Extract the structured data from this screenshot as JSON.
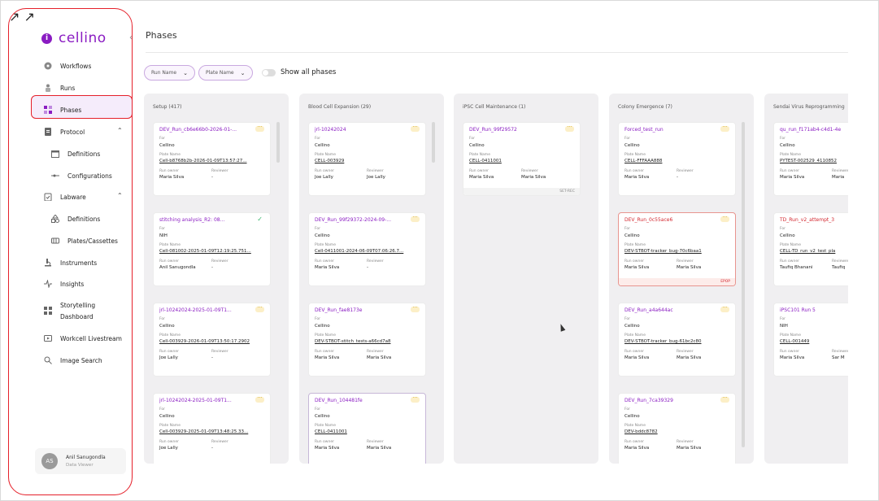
{
  "brand": {
    "name": "cellino",
    "accent": "#8a1cc2",
    "highlight": "#e5202a"
  },
  "nav": {
    "workflows": "Workflows",
    "runs": "Runs",
    "phases": "Phases",
    "protocol": "Protocol",
    "protocol_definitions": "Definitions",
    "protocol_configurations": "Configurations",
    "labware": "Labware",
    "labware_definitions": "Definitions",
    "labware_plates": "Plates/Cassettes",
    "instruments": "Instruments",
    "insights": "Insights",
    "storytelling_1": "Storytelling",
    "storytelling_2": "Dashboard",
    "workcell": "Workcell Livestream",
    "image_search": "Image Search"
  },
  "user": {
    "initials": "AS",
    "name": "Anil Sanugondla",
    "role": "Data Viewer"
  },
  "page": {
    "title": "Phases"
  },
  "filters": {
    "run_name": "Run Name",
    "plate_name": "Plate Name",
    "show_all": "Show all phases"
  },
  "labels": {
    "for": "For",
    "plate_name": "Plate Name",
    "run_owner": "Run owner",
    "reviewer": "Reviewer"
  },
  "columns": [
    {
      "title": "Setup (417)",
      "cards": [
        {
          "title": "DEV_Run_cb6e66b0-2026-01-...",
          "for": "Cellino",
          "plate": "Cell-b8768b2b-2026-01-09T13:57:27...",
          "owner": "Maria Silva",
          "reviewer": "-",
          "status": "pending",
          "footer": ""
        },
        {
          "title": "stitching analysis_R2: 08...",
          "for": "NIH",
          "plate": "Cell-081002-2025-01-09T12:19:25.751...",
          "owner": "Anil Sanugondla",
          "reviewer": "-",
          "status": "done",
          "footer": ""
        },
        {
          "title": "jrl-10242024-2025-01-09T1...",
          "for": "Cellino",
          "plate": "Cell-003929-2026-01-09T13:50:17.2902",
          "owner": "Joe Lally",
          "reviewer": "-",
          "status": "pending",
          "footer": ""
        },
        {
          "title": "jrl-10242024-2025-01-09T1...",
          "for": "Cellino",
          "plate": "Cell-003929-2025-01-09T13:48:25.33...",
          "owner": "Joe Lally",
          "reviewer": "-",
          "status": "pending",
          "footer": ""
        }
      ]
    },
    {
      "title": "Blood Cell Expansion (29)",
      "cards": [
        {
          "title": "jrl-10242024",
          "for": "Cellino",
          "plate": "CELL-003929",
          "owner": "Joe Lally",
          "reviewer": "Joe Lally",
          "status": "pending",
          "footer": ""
        },
        {
          "title": "DEV_Run_99f29372-2024-09-...",
          "for": "Cellino",
          "plate": "Cell-0411001-2024-06-09T07:06:26.7...",
          "owner": "Maria Silva",
          "reviewer": "-",
          "status": "pending",
          "footer": ""
        },
        {
          "title": "DEV_Run_fae8173e",
          "for": "Cellino",
          "plate": "DEV-STBOT-stitch_tests-a66cd7a8",
          "owner": "Maria Silva",
          "reviewer": "Maria Silva",
          "status": "pending",
          "footer": ""
        },
        {
          "title": "DEV_Run_104481fe",
          "for": "Cellino",
          "plate": "CELL-0411001",
          "owner": "Maria Silva",
          "reviewer": "Maria Silva",
          "status": "pending",
          "footer": ""
        }
      ]
    },
    {
      "title": "iPSC Cell Maintenance (1)",
      "cards": [
        {
          "title": "DEV_Run_99f29572",
          "for": "Cellino",
          "plate": "CELL-0411001",
          "owner": "Maria Silva",
          "reviewer": "Maria Silva",
          "status": "pending",
          "footer": "SET-REC"
        }
      ]
    },
    {
      "title": "Colony Emergence (7)",
      "cards": [
        {
          "title": "Forced_test_run",
          "for": "Cellino",
          "plate": "CELL-FFFAAA888",
          "owner": "Maria Silva",
          "reviewer": "-",
          "status": "pending",
          "footer": ""
        },
        {
          "title": "DEV_Run_0c55ace6",
          "for": "Cellino",
          "plate": "DEV-STBOT-tracker_bug-70c6baa1",
          "owner": "Maria Silva",
          "reviewer": "Maria Silva",
          "status": "pending",
          "footer": "EPOP"
        },
        {
          "title": "DEV_Run_a4a644ac",
          "for": "Cellino",
          "plate": "DEV-STBOT-tracker_bug-61bc2c80",
          "owner": "Maria Silva",
          "reviewer": "Maria Silva",
          "status": "pending",
          "footer": ""
        },
        {
          "title": "DEV_Run_7ca39329",
          "for": "Cellino",
          "plate": "DEV-bddc8782",
          "owner": "Maria Silva",
          "reviewer": "Maria Silva",
          "status": "pending",
          "footer": ""
        }
      ]
    },
    {
      "title": "Sendai Virus Reprogramming",
      "cards": [
        {
          "title": "qu_run_f171ab4-c4d1-4e",
          "for": "Cellino",
          "plate": "PYTEST-002529_4110852",
          "owner": "Maria Silva",
          "reviewer": "Maria",
          "status": "none",
          "footer": ""
        },
        {
          "title": "TD_Run_v2_attempt_3",
          "for": "Cellino",
          "plate": "CELL-TD_run_v2_test_pla",
          "owner": "Taufiq Bhanani",
          "reviewer": "Taufiq",
          "status": "none",
          "footer": ""
        },
        {
          "title": "iPSC101 Run 5",
          "for": "NIH",
          "plate": "CELL-001449",
          "owner": "Maria Silva",
          "reviewer": "Sar M",
          "status": "none",
          "footer": ""
        }
      ]
    }
  ]
}
